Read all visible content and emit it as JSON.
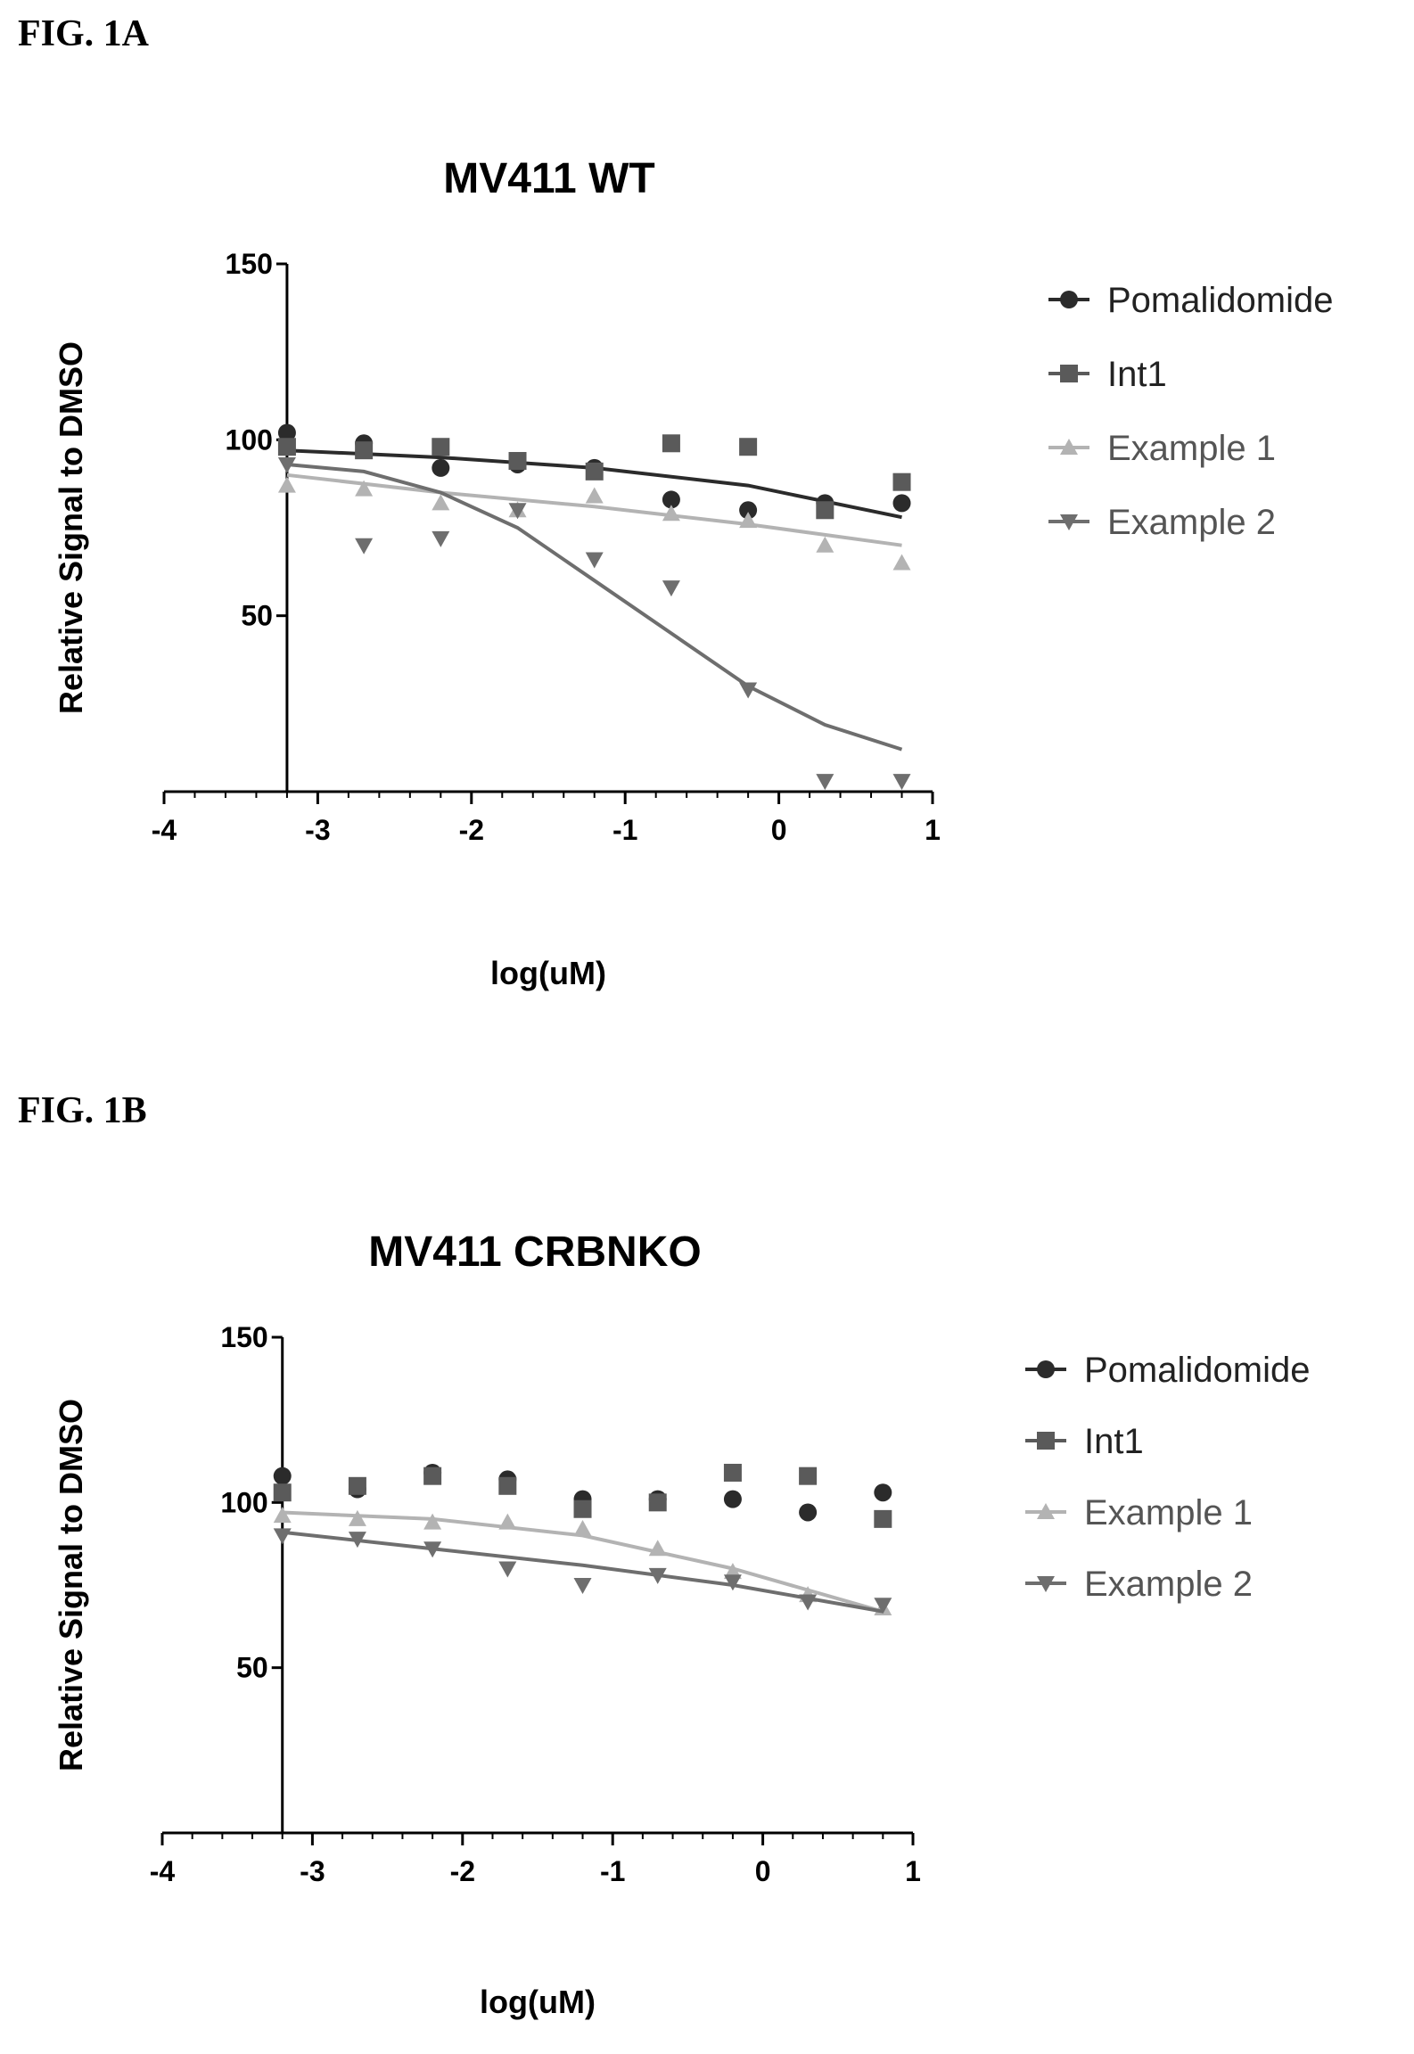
{
  "figure_labels": {
    "a": "FIG. 1A",
    "b": "FIG. 1B"
  },
  "colors": {
    "Pomalidomide": "#2b2b2b",
    "Int1": "#5a5a5a",
    "Example 1": "#b3b3b3",
    "Example 2": "#6e6e6e"
  },
  "chart_data": [
    {
      "type": "scatter",
      "title": "MV411 WT",
      "xlabel": "log(uM)",
      "ylabel": "Relative Signal to DMSO",
      "xlim": [
        -4,
        1
      ],
      "ylim": [
        0,
        150
      ],
      "x_ticks": [
        -4,
        -3,
        -2,
        -1,
        0,
        1
      ],
      "y_ticks": [
        50,
        100,
        150
      ],
      "legend_position": "right",
      "series": [
        {
          "name": "Pomalidomide",
          "marker": "circle",
          "points": [
            [
              -3.2,
              102
            ],
            [
              -2.7,
              99
            ],
            [
              -2.2,
              92
            ],
            [
              -1.7,
              93
            ],
            [
              -1.2,
              92
            ],
            [
              -0.7,
              83
            ],
            [
              -0.2,
              80
            ],
            [
              0.3,
              82
            ],
            [
              0.8,
              82
            ]
          ],
          "fit": [
            [
              -3.2,
              97
            ],
            [
              -2.2,
              95
            ],
            [
              -1.2,
              92
            ],
            [
              -0.2,
              87
            ],
            [
              0.8,
              78
            ]
          ]
        },
        {
          "name": "Int1",
          "marker": "square",
          "points": [
            [
              -3.2,
              98
            ],
            [
              -2.7,
              97
            ],
            [
              -2.2,
              98
            ],
            [
              -1.7,
              94
            ],
            [
              -1.2,
              91
            ],
            [
              -0.7,
              99
            ],
            [
              -0.2,
              98
            ],
            [
              0.3,
              80
            ],
            [
              0.8,
              88
            ]
          ]
        },
        {
          "name": "Example 1",
          "marker": "triangle",
          "points": [
            [
              -3.2,
              87
            ],
            [
              -2.7,
              86
            ],
            [
              -2.2,
              82
            ],
            [
              -1.7,
              80
            ],
            [
              -1.2,
              84
            ],
            [
              -0.7,
              79
            ],
            [
              -0.2,
              77
            ],
            [
              0.3,
              70
            ],
            [
              0.8,
              65
            ]
          ],
          "fit": [
            [
              -3.2,
              90
            ],
            [
              -2.2,
              85
            ],
            [
              -1.2,
              81
            ],
            [
              -0.2,
              76
            ],
            [
              0.8,
              70
            ]
          ]
        },
        {
          "name": "Example 2",
          "marker": "triangle-down",
          "points": [
            [
              -3.2,
              93
            ],
            [
              -2.7,
              70
            ],
            [
              -2.2,
              72
            ],
            [
              -1.7,
              80
            ],
            [
              -1.2,
              66
            ],
            [
              -0.7,
              58
            ],
            [
              -0.2,
              29
            ],
            [
              0.3,
              3
            ],
            [
              0.8,
              3
            ]
          ],
          "fit": [
            [
              -3.2,
              93
            ],
            [
              -2.7,
              91
            ],
            [
              -2.2,
              85
            ],
            [
              -1.7,
              75
            ],
            [
              -1.2,
              60
            ],
            [
              -0.7,
              45
            ],
            [
              -0.2,
              30
            ],
            [
              0.3,
              19
            ],
            [
              0.8,
              12
            ]
          ]
        }
      ]
    },
    {
      "type": "scatter",
      "title": "MV411 CRBNKO",
      "xlabel": "log(uM)",
      "ylabel": "Relative Signal to DMSO",
      "xlim": [
        -4,
        1
      ],
      "ylim": [
        0,
        150
      ],
      "x_ticks": [
        -4,
        -3,
        -2,
        -1,
        0,
        1
      ],
      "y_ticks": [
        50,
        100,
        150
      ],
      "legend_position": "right",
      "series": [
        {
          "name": "Pomalidomide",
          "marker": "circle",
          "points": [
            [
              -3.2,
              108
            ],
            [
              -2.7,
              104
            ],
            [
              -2.2,
              109
            ],
            [
              -1.7,
              107
            ],
            [
              -1.2,
              101
            ],
            [
              -0.7,
              101
            ],
            [
              -0.2,
              101
            ],
            [
              0.3,
              97
            ],
            [
              0.8,
              103
            ]
          ]
        },
        {
          "name": "Int1",
          "marker": "square",
          "points": [
            [
              -3.2,
              103
            ],
            [
              -2.7,
              105
            ],
            [
              -2.2,
              108
            ],
            [
              -1.7,
              105
            ],
            [
              -1.2,
              98
            ],
            [
              -0.7,
              100
            ],
            [
              -0.2,
              109
            ],
            [
              0.3,
              108
            ],
            [
              0.8,
              95
            ]
          ]
        },
        {
          "name": "Example 1",
          "marker": "triangle",
          "points": [
            [
              -3.2,
              96
            ],
            [
              -2.7,
              95
            ],
            [
              -2.2,
              94
            ],
            [
              -1.7,
              94
            ],
            [
              -1.2,
              92
            ],
            [
              -0.7,
              86
            ],
            [
              -0.2,
              79
            ],
            [
              0.3,
              72
            ],
            [
              0.8,
              68
            ]
          ],
          "fit": [
            [
              -3.2,
              97
            ],
            [
              -2.2,
              95
            ],
            [
              -1.2,
              90
            ],
            [
              -0.2,
              80
            ],
            [
              0.8,
              67
            ]
          ]
        },
        {
          "name": "Example 2",
          "marker": "triangle-down",
          "points": [
            [
              -3.2,
              90
            ],
            [
              -2.7,
              89
            ],
            [
              -2.2,
              86
            ],
            [
              -1.7,
              80
            ],
            [
              -1.2,
              75
            ],
            [
              -0.7,
              78
            ],
            [
              -0.2,
              76
            ],
            [
              0.3,
              70
            ],
            [
              0.8,
              69
            ]
          ],
          "fit": [
            [
              -3.2,
              91
            ],
            [
              -2.2,
              86
            ],
            [
              -1.2,
              81
            ],
            [
              -0.2,
              75
            ],
            [
              0.8,
              67
            ]
          ]
        }
      ]
    }
  ]
}
